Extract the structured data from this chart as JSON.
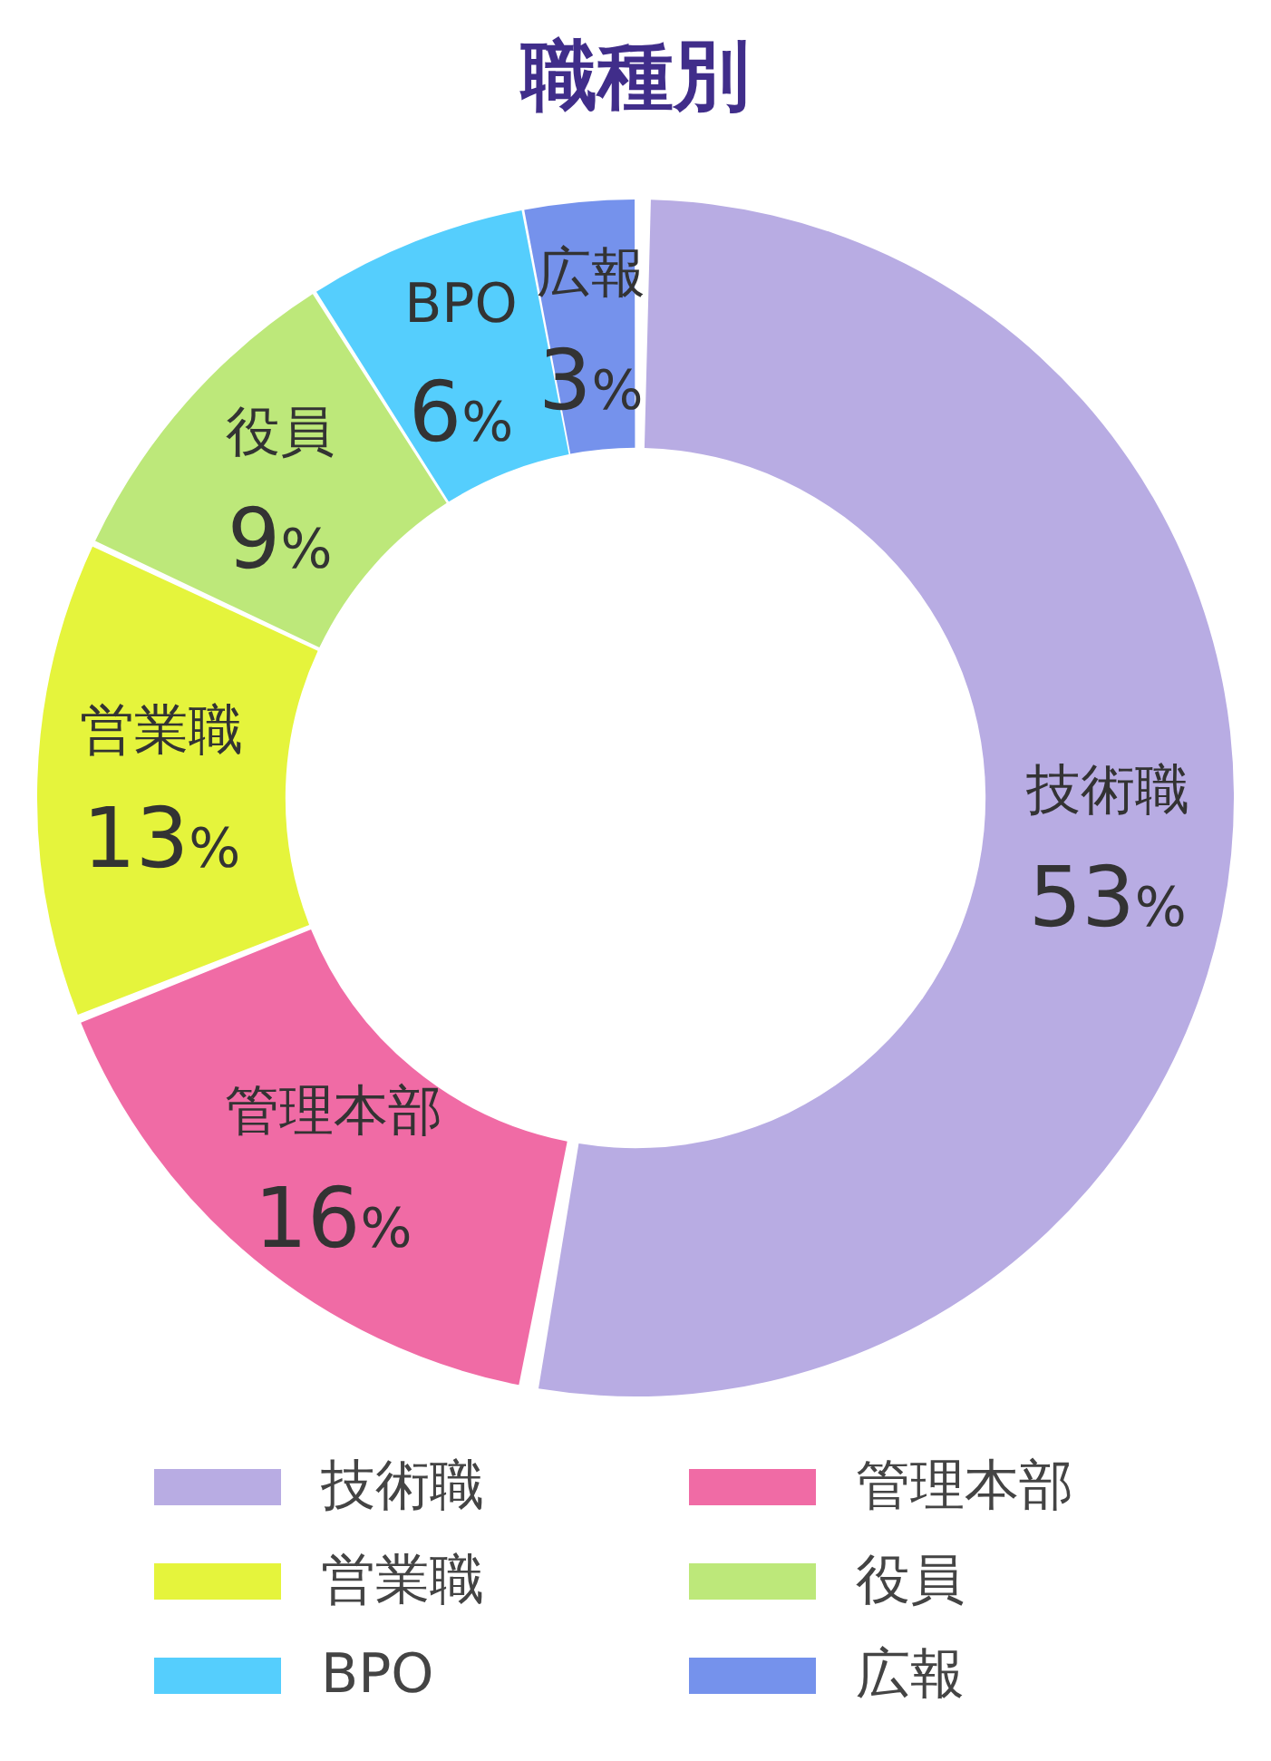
{
  "chart_data": {
    "type": "donut",
    "title": "職種別",
    "categories": [
      "技術職",
      "管理本部",
      "営業職",
      "役員",
      "BPO",
      "広報"
    ],
    "values": [
      53,
      16,
      13,
      9,
      6,
      3
    ],
    "colors": [
      "#b8ace3",
      "#f06ba5",
      "#e5f43c",
      "#bde87a",
      "#55cefd",
      "#7592ec"
    ],
    "value_labels": [
      "53%",
      "16%",
      "13%",
      "9%",
      "6%",
      "3%"
    ],
    "legend": "bottom"
  }
}
